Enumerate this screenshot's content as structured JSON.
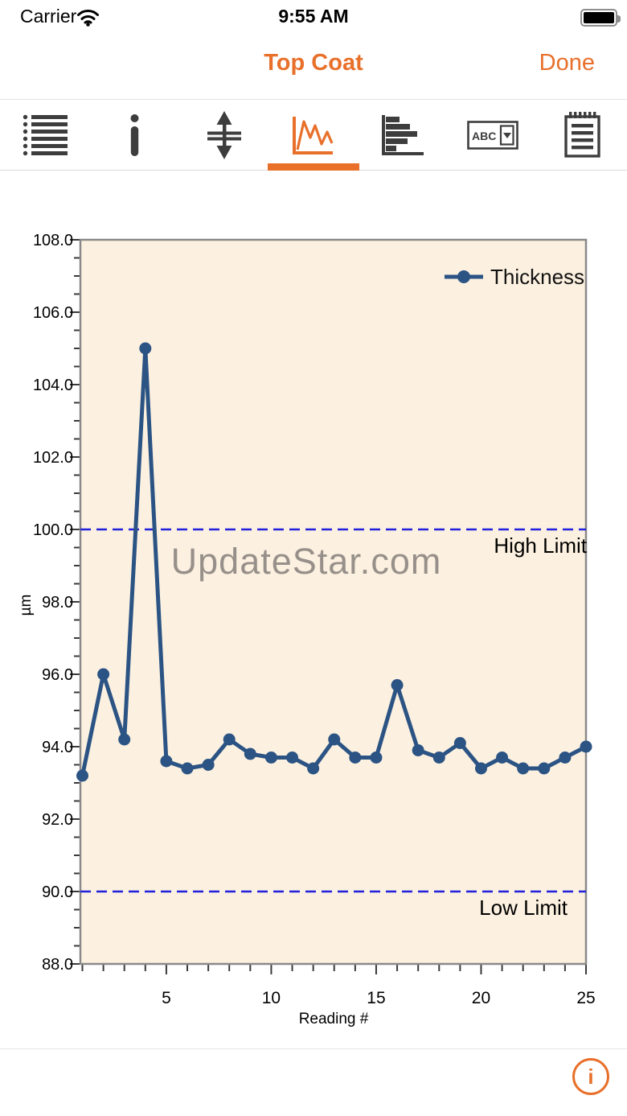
{
  "accent_color": "#e8702b",
  "status_bar": {
    "carrier": "Carrier",
    "time": "9:55 AM",
    "battery_level": "full"
  },
  "nav_bar": {
    "title": "Top Coat",
    "done_label": "Done"
  },
  "toolbar": {
    "abc_label": "ABC",
    "selected_index": 3,
    "items": [
      {
        "icon": "list-icon"
      },
      {
        "icon": "info-icon"
      },
      {
        "icon": "limits-icon"
      },
      {
        "icon": "line-chart-icon",
        "selected": true
      },
      {
        "icon": "histogram-icon"
      },
      {
        "icon": "abc-dropdown-icon"
      },
      {
        "icon": "notes-icon"
      }
    ]
  },
  "watermark": {
    "text": "UpdateStar.com",
    "color": "#97908a"
  },
  "chart_data": {
    "type": "line",
    "xlabel": "Reading #",
    "ylabel": "µm",
    "xlim": [
      1,
      25
    ],
    "ylim": [
      88,
      108
    ],
    "x_minor_tick_step": 1,
    "x_major_tick_step": 5,
    "y_minor_tick_step": 0.5,
    "y_major_tick_step": 2,
    "x_tick_labels": [
      "5",
      "10",
      "15",
      "20",
      "25"
    ],
    "y_tick_labels": [
      "88.0",
      "90.0",
      "92.0",
      "94.0",
      "96.0",
      "98.0",
      "100.0",
      "102.0",
      "104.0",
      "106.0",
      "108.0"
    ],
    "grid": false,
    "plot_background": "#fcf1e0",
    "frame_color": "#898989",
    "tick_color": "#3a3a3a",
    "limit_color": "#2121dd",
    "legend": {
      "position": "top-right",
      "entries": [
        "Thickness"
      ]
    },
    "series": [
      {
        "name": "Thickness",
        "color": "#2b5384",
        "x": [
          1,
          2,
          3,
          4,
          5,
          6,
          7,
          8,
          9,
          10,
          11,
          12,
          13,
          14,
          15,
          16,
          17,
          18,
          19,
          20,
          21,
          22,
          23,
          24,
          25
        ],
        "values": [
          93.2,
          96.0,
          94.2,
          105.0,
          93.6,
          93.4,
          93.5,
          94.2,
          93.8,
          93.7,
          93.7,
          93.4,
          94.2,
          93.7,
          93.7,
          95.7,
          93.9,
          93.7,
          94.1,
          93.4,
          93.7,
          93.4,
          93.4,
          93.7,
          94.0
        ]
      }
    ],
    "limits": [
      {
        "label": "High Limit",
        "value": 100.0,
        "label_anchor_x": 730
      },
      {
        "label": "Low Limit",
        "value": 90.0,
        "label_anchor_x": 706
      }
    ]
  },
  "footer": {
    "info_button_label": "i"
  }
}
